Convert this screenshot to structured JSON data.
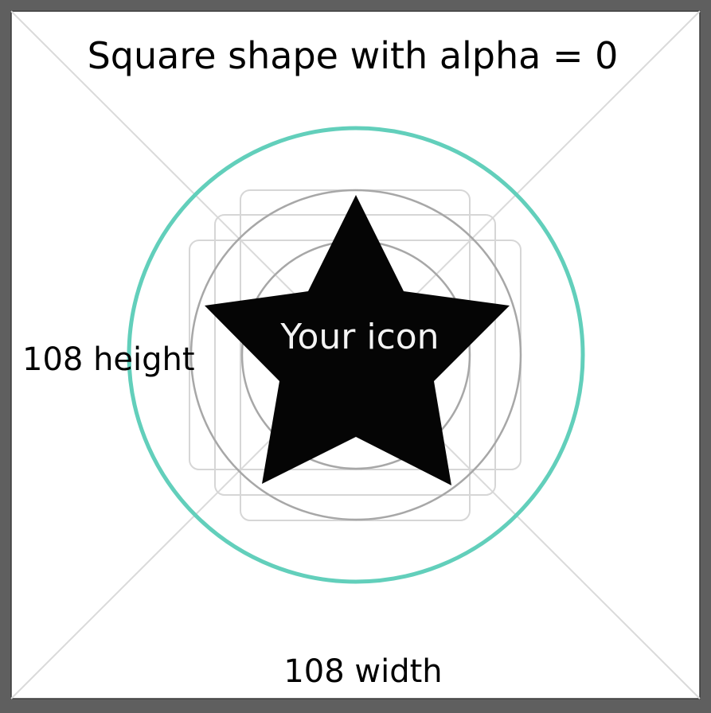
{
  "diagram": {
    "title": "Square shape with alpha = 0",
    "height_label": "108 height",
    "width_label": "108 width",
    "icon_label": "Your icon",
    "colors": {
      "frame_background": "#ffffff",
      "outer_background": "#5f5f5f",
      "safe_zone_circle": "#62cfbb",
      "keyline_circles": "#a7a7a7",
      "keyline_shapes": "#d6d6d6",
      "diagonals": "#dadada",
      "icon_fill": "#050505",
      "icon_label": "#f4f4f4",
      "text": "#000000"
    }
  }
}
